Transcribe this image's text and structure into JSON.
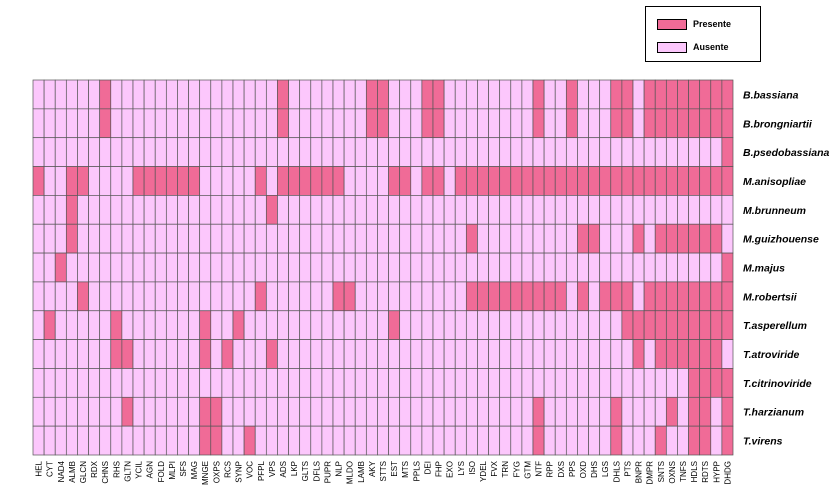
{
  "chart_data": {
    "type": "heatmap",
    "title": "",
    "xlabel": "",
    "ylabel": "",
    "colors": {
      "presente": "#f06b97",
      "ausente": "#fcc7fc",
      "grid": "#555555"
    },
    "legend": {
      "placement": "top-right",
      "entries": [
        {
          "label": "Presente",
          "value": 1
        },
        {
          "label": "Ausente",
          "value": 0
        }
      ]
    },
    "x_categories": [
      "HEL",
      "CYT",
      "NAD4",
      "ALMB",
      "GLCN",
      "RDX",
      "CHNS",
      "RHS",
      "GLTN",
      "YCIL",
      "AGN",
      "FOLD",
      "MLPI",
      "SFS",
      "MAG",
      "MNGE",
      "OXPS",
      "RCS",
      "SYNP",
      "VOC",
      "PFPL",
      "VPS",
      "ADS",
      "LKP",
      "GLTS",
      "DFLS",
      "PUPR",
      "NLP",
      "MLDO",
      "LAMB",
      "AKY",
      "STTS",
      "EST",
      "MTS",
      "PPLS",
      "DEI",
      "FHP",
      "EXO",
      "LYS",
      "ISO",
      "YDEL",
      "FVX",
      "TRN",
      "FYG",
      "GTM",
      "NTF",
      "RPP",
      "DXS",
      "PPS",
      "OXD",
      "DHS",
      "LGS",
      "DHLS",
      "PTS",
      "BNPR",
      "DMPR",
      "SNTS",
      "OXNS",
      "TNFS",
      "HDLS",
      "RDTS",
      "HYPP",
      "DHDG"
    ],
    "y_categories": [
      "B.bassiana",
      "B.brongniartii",
      "B.psedobassiana",
      "M.anisopliae",
      "M.brunneum",
      "M.guizhouense",
      "M.majus",
      "M.robertsii",
      "T.asperellum",
      "T.atroviride",
      "T.citrinoviride",
      "T.harzianum",
      "T.virens"
    ],
    "rows": [
      "000000100000000000000010000000110001100000000100100011011111111",
      "000000100000000000000010000000110001100000000100100011011111111",
      "000000000000000000000000000000000000000000000000000000000000001",
      "100110000111111000001011111100001101101111111111111111111111111",
      "000100000000000000000100000000000000000000000000000000000000000",
      "000100000000000000000000000000000000000100000000011000101111110",
      "001000000000000000000000000000000000000000000000000000000000001",
      "000010000000000000001000000110000000000111111111010111011111111",
      "010000010000000100100000000000001000000000000000000001111111111",
      "000000011000000101000100000000000000000000000000000000101111110",
      "000000000000000000000000000000000000000000000000000000000001111",
      "000000001000000110000000000000000000000000000100000010000101101",
      "000000000000000110010000000000000000000000000100000010001001101"
    ]
  }
}
